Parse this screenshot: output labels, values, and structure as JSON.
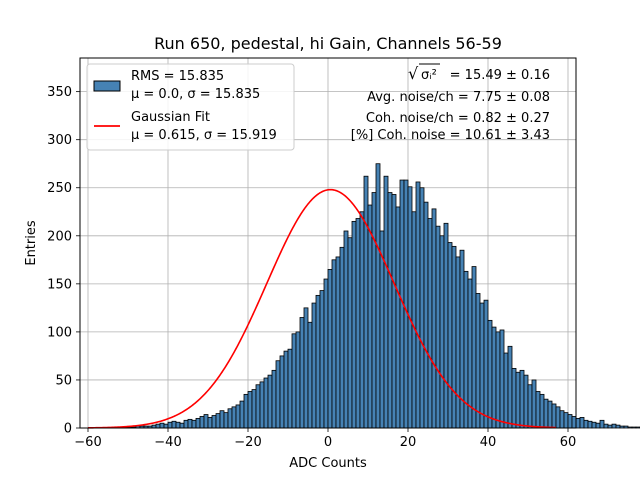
{
  "chart_data": {
    "type": "bar",
    "title": "Run 650, pedestal, hi Gain, Channels 56-59",
    "xlabel": "ADC Counts",
    "ylabel": "Entries",
    "xlim": [
      -62,
      62
    ],
    "ylim": [
      0,
      385
    ],
    "xticks": [
      -60,
      -40,
      -20,
      0,
      20,
      40,
      60
    ],
    "xtick_labels": [
      "−60",
      "−40",
      "−20",
      "0",
      "20",
      "40",
      "60"
    ],
    "yticks": [
      0,
      50,
      100,
      150,
      200,
      250,
      300,
      350
    ],
    "ytick_labels": [
      "0",
      "50",
      "100",
      "150",
      "200",
      "250",
      "300",
      "350"
    ],
    "grid": true,
    "legend_position": "upper-left",
    "bin_width": 1,
    "bin_start": -60,
    "histogram": {
      "name": "RMS = 15.835",
      "name_line2": "μ = 0.0, σ = 15.835",
      "color": "#4682b4",
      "edge_color": "#000000",
      "counts": [
        0,
        0,
        0,
        0,
        0,
        0,
        0,
        0,
        1,
        1,
        1,
        1,
        2,
        2,
        2,
        2,
        3,
        4,
        5,
        4,
        6,
        7,
        6,
        5,
        8,
        9,
        8,
        10,
        12,
        14,
        11,
        13,
        15,
        18,
        16,
        20,
        22,
        24,
        28,
        35,
        38,
        40,
        45,
        48,
        52,
        55,
        60,
        70,
        75,
        80,
        82,
        98,
        100,
        115,
        125,
        110,
        130,
        138,
        143,
        155,
        165,
        175,
        178,
        188,
        205,
        198,
        215,
        218,
        225,
        262,
        232,
        245,
        275,
        205,
        262,
        245,
        243,
        230,
        258,
        258,
        251,
        225,
        256,
        250,
        235,
        218,
        228,
        210,
        200,
        213,
        193,
        189,
        178,
        185,
        163,
        155,
        168,
        140,
        130,
        133,
        112,
        105,
        100,
        102,
        78,
        85,
        62,
        58,
        60,
        55,
        45,
        50,
        38,
        35,
        30,
        28,
        25,
        22,
        18,
        16,
        14,
        12,
        10,
        11,
        8,
        7,
        6,
        5,
        8,
        4,
        3,
        4,
        3,
        2,
        2,
        1,
        1,
        1,
        1,
        1,
        1,
        0,
        0,
        0,
        0
      ]
    },
    "fit": {
      "name": "Gaussian Fit",
      "name_line2": "μ = 0.615, σ = 15.919",
      "color": "#ff0000",
      "mu": 0.615,
      "sigma": 15.919,
      "amplitude": 248,
      "x_range": [
        -60,
        57
      ]
    },
    "annotations": [
      {
        "prefix": "√",
        "radicand": "σᵢ²",
        "value": " = 15.49 ± 0.16"
      },
      {
        "text": "Avg. noise/ch = 7.75 ± 0.08"
      },
      {
        "text": "Coh. noise/ch = 0.82 ± 0.27"
      },
      {
        "text": "[%] Coh. noise = 10.61 ± 3.43"
      }
    ]
  }
}
